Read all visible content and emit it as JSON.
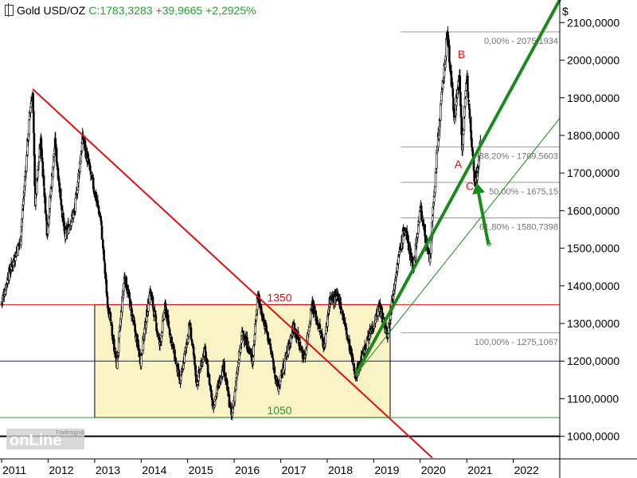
{
  "header": {
    "symbol": "Gold USD/OZ",
    "close": "C:1783,3283",
    "change": "+39,9665",
    "change_pct": "+2,2925%"
  },
  "currency": "$",
  "logo": {
    "small": "Tradesignal",
    "main": "onLine"
  },
  "colors": {
    "up_candle": "#ffffff",
    "down_candle": "#000000",
    "downtrend": "#e01010",
    "uptrend": "#1a8a1a",
    "range_box": "#faf3c6",
    "level_1350": "#e01010",
    "level_1200": "#1020a0",
    "level_1050": "#2a9a2a",
    "level_1000": "#000000",
    "fib_line": "#999999"
  },
  "chart_data": {
    "type": "candlestick",
    "instrument": "Gold USD/OZ",
    "x_axis": {
      "type": "date",
      "range": [
        "2011-01-01",
        "2022-12-31"
      ],
      "tick_labels": [
        "2011",
        "2012",
        "2013",
        "2014",
        "2015",
        "2016",
        "2017",
        "2018",
        "2019",
        "2020",
        "2021",
        "2022"
      ]
    },
    "y_axis": {
      "range": [
        940,
        2160
      ],
      "position": "right",
      "tick_labels": [
        "1000,0000",
        "1100,0000",
        "1200,0000",
        "1300,0000",
        "1400,0000",
        "1500,0000",
        "1600,0000",
        "1700,0000",
        "1800,0000",
        "1900,0000",
        "2000,0000",
        "2100,0000"
      ]
    },
    "price_path": [
      [
        "2011-01-01",
        1350
      ],
      [
        "2011-03-01",
        1430
      ],
      [
        "2011-06-01",
        1520
      ],
      [
        "2011-08-20",
        1880
      ],
      [
        "2011-09-06",
        1910
      ],
      [
        "2011-09-26",
        1620
      ],
      [
        "2011-11-08",
        1790
      ],
      [
        "2011-12-29",
        1540
      ],
      [
        "2012-02-28",
        1780
      ],
      [
        "2012-05-16",
        1530
      ],
      [
        "2012-08-01",
        1600
      ],
      [
        "2012-10-04",
        1795
      ],
      [
        "2012-12-28",
        1660
      ],
      [
        "2013-02-20",
        1580
      ],
      [
        "2013-04-15",
        1360
      ],
      [
        "2013-06-28",
        1190
      ],
      [
        "2013-08-28",
        1430
      ],
      [
        "2013-12-31",
        1200
      ],
      [
        "2014-03-17",
        1390
      ],
      [
        "2014-06-01",
        1240
      ],
      [
        "2014-07-10",
        1345
      ],
      [
        "2014-11-07",
        1140
      ],
      [
        "2015-01-22",
        1300
      ],
      [
        "2015-03-17",
        1140
      ],
      [
        "2015-05-18",
        1230
      ],
      [
        "2015-07-24",
        1080
      ],
      [
        "2015-10-14",
        1190
      ],
      [
        "2015-12-17",
        1050
      ],
      [
        "2016-03-11",
        1280
      ],
      [
        "2016-05-30",
        1200
      ],
      [
        "2016-07-06",
        1375
      ],
      [
        "2016-10-07",
        1250
      ],
      [
        "2016-12-15",
        1125
      ],
      [
        "2017-04-17",
        1295
      ],
      [
        "2017-07-10",
        1205
      ],
      [
        "2017-09-08",
        1355
      ],
      [
        "2017-12-12",
        1240
      ],
      [
        "2018-01-25",
        1365
      ],
      [
        "2018-04-11",
        1365
      ],
      [
        "2018-08-16",
        1160
      ],
      [
        "2019-02-20",
        1345
      ],
      [
        "2019-04-23",
        1270
      ],
      [
        "2019-06-25",
        1430
      ],
      [
        "2019-09-04",
        1555
      ],
      [
        "2019-11-12",
        1450
      ],
      [
        "2020-01-08",
        1610
      ],
      [
        "2020-03-19",
        1460
      ],
      [
        "2020-05-18",
        1765
      ],
      [
        "2020-08-06",
        2075
      ],
      [
        "2020-09-28",
        1850
      ],
      [
        "2020-11-09",
        1960
      ],
      [
        "2020-11-30",
        1765
      ],
      [
        "2021-01-06",
        1960
      ],
      [
        "2021-03-08",
        1680
      ],
      [
        "2021-03-31",
        1705
      ],
      [
        "2021-04-20",
        1783
      ]
    ],
    "lines": [
      {
        "name": "downtrend",
        "from": [
          "2011-09-06",
          1922
        ],
        "to": [
          "2020-04-01",
          944
        ]
      },
      {
        "name": "uptrend",
        "from": [
          "2018-08-16",
          1165
        ],
        "to": [
          "2022-12-31",
          2160
        ]
      },
      {
        "name": "uptrend-thin",
        "from": [
          "2018-08-16",
          1165
        ],
        "to": [
          "2022-12-31",
          1845
        ]
      }
    ],
    "range_box": {
      "from": "2013-01-01",
      "to": "2019-05-10",
      "top": 1350,
      "bottom": 1050
    },
    "levels": [
      {
        "value": 1350,
        "label": "1350"
      },
      {
        "value": 1200,
        "label": ""
      },
      {
        "value": 1050,
        "label": "1050"
      },
      {
        "value": 1000,
        "label": ""
      }
    ],
    "fibonacci": {
      "from": "2019-08-01",
      "to": "2022-12-31",
      "levels": [
        {
          "value": 2075.1934,
          "label": "0,00% - 2075,1934"
        },
        {
          "value": 1769.5603,
          "label": "38,20% - 1769,5603"
        },
        {
          "value": 1675.15,
          "label": "50,00% - 1675,15"
        },
        {
          "value": 1580.7398,
          "label": "61,80% - 1580,7398"
        },
        {
          "value": 1275.1067,
          "label": "100,00% - 1275,1067"
        }
      ]
    },
    "wave_labels": [
      {
        "text": "B",
        "date": "2020-11-20",
        "price": 2005
      },
      {
        "text": "A",
        "date": "2020-10-25",
        "price": 1713
      },
      {
        "text": "C",
        "date": "2021-01-25",
        "price": 1655
      }
    ],
    "arrow": {
      "from": [
        "2021-06-20",
        1510
      ],
      "to": [
        "2021-03-18",
        1675
      ]
    },
    "annotations": [
      {
        "text": "5",
        "date": "2021-06-25",
        "price": 1505
      }
    ]
  }
}
